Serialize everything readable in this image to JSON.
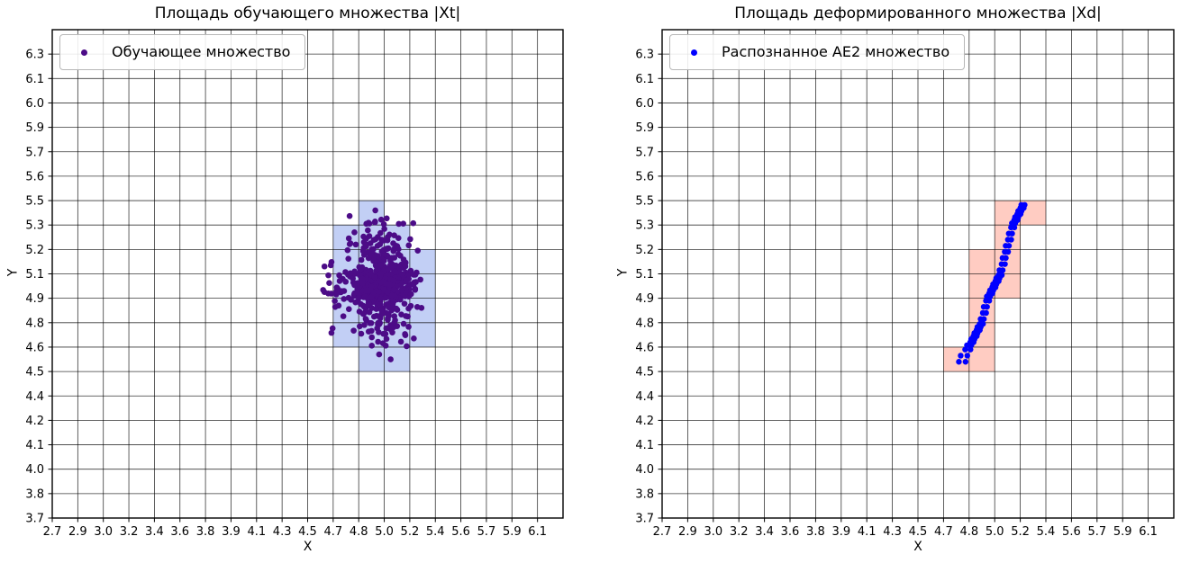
{
  "figure": {
    "background": "#ffffff"
  },
  "chart_data": [
    {
      "type": "scatter",
      "title": "Площадь обучающего множества |Xt|",
      "xlabel": "X",
      "ylabel": "Y",
      "x_ticks": [
        "2.7",
        "2.9",
        "3.0",
        "3.2",
        "3.4",
        "3.6",
        "3.8",
        "3.9",
        "4.1",
        "4.3",
        "4.5",
        "4.7",
        "4.8",
        "5.0",
        "5.2",
        "5.4",
        "5.6",
        "5.7",
        "5.9",
        "6.1"
      ],
      "y_ticks": [
        "3.7",
        "3.8",
        "4.0",
        "4.1",
        "4.2",
        "4.4",
        "4.5",
        "4.6",
        "4.8",
        "4.9",
        "5.1",
        "5.2",
        "5.3",
        "5.5",
        "5.6",
        "5.7",
        "5.9",
        "6.0",
        "6.1",
        "6.3"
      ],
      "grid": true,
      "legend": {
        "label": "Обучающее множество",
        "position": "upper-left"
      },
      "point_color": "#4c0c87",
      "point_radius": 3.3,
      "cell_fill": "rgba(65,105,225,0.32)",
      "highlight_cells": [
        [
          4.8,
          5.0,
          5.3,
          5.5
        ],
        [
          4.7,
          4.8,
          5.2,
          5.3
        ],
        [
          4.8,
          5.0,
          5.2,
          5.3
        ],
        [
          5.0,
          5.2,
          5.2,
          5.3
        ],
        [
          4.7,
          4.8,
          5.1,
          5.2
        ],
        [
          4.8,
          5.0,
          5.1,
          5.2
        ],
        [
          5.0,
          5.2,
          5.1,
          5.2
        ],
        [
          5.2,
          5.4,
          5.1,
          5.2
        ],
        [
          4.7,
          4.8,
          4.9,
          5.1
        ],
        [
          4.8,
          5.0,
          4.9,
          5.1
        ],
        [
          5.0,
          5.2,
          4.9,
          5.1
        ],
        [
          5.2,
          5.4,
          4.9,
          5.1
        ],
        [
          4.7,
          4.8,
          4.8,
          4.9
        ],
        [
          4.8,
          5.0,
          4.8,
          4.9
        ],
        [
          5.0,
          5.2,
          4.8,
          4.9
        ],
        [
          5.2,
          5.4,
          4.8,
          4.9
        ],
        [
          4.7,
          4.8,
          4.6,
          4.8
        ],
        [
          4.8,
          5.0,
          4.6,
          4.8
        ],
        [
          5.0,
          5.2,
          4.6,
          4.8
        ],
        [
          5.2,
          5.4,
          4.6,
          4.8
        ],
        [
          4.8,
          5.0,
          4.5,
          4.6
        ],
        [
          5.0,
          5.2,
          4.5,
          4.6
        ]
      ],
      "points_spec": {
        "kind": "gaussian-cluster",
        "center": [
          4.97,
          5.0
        ],
        "std": [
          0.125,
          0.14
        ],
        "n": 620,
        "seed": 20,
        "clip_sigma": 3.0
      },
      "extra_points": [
        [
          4.93,
          5.42
        ],
        [
          4.96,
          4.57
        ],
        [
          5.05,
          4.55
        ]
      ]
    },
    {
      "type": "scatter",
      "title": "Площадь деформированного множества |Xd|",
      "xlabel": "X",
      "ylabel": "Y",
      "x_ticks": [
        "2.7",
        "2.9",
        "3.0",
        "3.2",
        "3.4",
        "3.6",
        "3.8",
        "3.9",
        "4.1",
        "4.3",
        "4.5",
        "4.7",
        "4.8",
        "5.0",
        "5.2",
        "5.4",
        "5.6",
        "5.7",
        "5.9",
        "6.1"
      ],
      "y_ticks": [
        "3.7",
        "3.8",
        "4.0",
        "4.1",
        "4.2",
        "4.4",
        "4.5",
        "4.6",
        "4.8",
        "4.9",
        "5.1",
        "5.2",
        "5.3",
        "5.5",
        "5.6",
        "5.7",
        "5.9",
        "6.0",
        "6.1",
        "6.3"
      ],
      "grid": true,
      "legend": {
        "label": "Распознанное AE2 множество",
        "position": "upper-left"
      },
      "point_color": "#0000ff",
      "point_radius": 3.2,
      "cell_fill": "rgba(255,99,71,0.33)",
      "highlight_cells": [
        [
          5.0,
          5.2,
          5.3,
          5.5
        ],
        [
          5.2,
          5.4,
          5.3,
          5.5
        ],
        [
          5.0,
          5.2,
          5.2,
          5.3
        ],
        [
          4.8,
          5.0,
          5.1,
          5.2
        ],
        [
          5.0,
          5.2,
          5.1,
          5.2
        ],
        [
          4.8,
          5.0,
          4.9,
          5.1
        ],
        [
          5.0,
          5.2,
          4.9,
          5.1
        ],
        [
          4.8,
          5.0,
          4.8,
          4.9
        ],
        [
          4.8,
          5.0,
          4.6,
          4.8
        ],
        [
          4.7,
          4.8,
          4.5,
          4.6
        ],
        [
          4.8,
          5.0,
          4.5,
          4.6
        ]
      ],
      "points_spec": {
        "kind": "staircase",
        "start": [
          4.76,
          4.54
        ],
        "step_dx": 0.0245,
        "step_dy": 0.05,
        "steps": 19,
        "offsets": [
          [
            0,
            0
          ],
          [
            0.026,
            0
          ],
          [
            0.007,
            0.025
          ],
          [
            0.033,
            0.025
          ]
        ]
      },
      "extra_points": []
    }
  ]
}
